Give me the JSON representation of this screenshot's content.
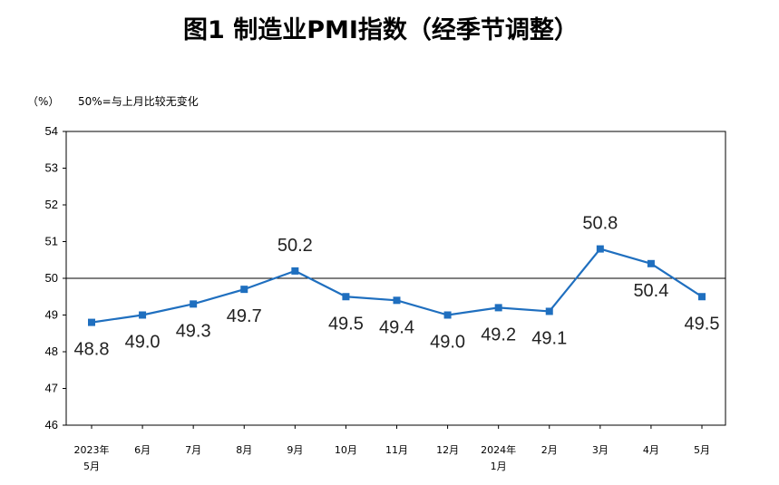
{
  "chart_data": {
    "type": "line",
    "title": "图1  制造业PMI指数（经季节调整）",
    "ylabel": "（%）",
    "annotation": "50%=与上月比较无变化",
    "ylim": [
      46,
      54
    ],
    "yticks": [
      "46",
      "47",
      "48",
      "49",
      "50",
      "51",
      "52",
      "53",
      "54"
    ],
    "reference_line": 50,
    "categories": [
      [
        "2023年",
        "5月"
      ],
      [
        "6月"
      ],
      [
        "7月"
      ],
      [
        "8月"
      ],
      [
        "9月"
      ],
      [
        "10月"
      ],
      [
        "11月"
      ],
      [
        "12月"
      ],
      [
        "2024年",
        "1月"
      ],
      [
        "2月"
      ],
      [
        "3月"
      ],
      [
        "4月"
      ],
      [
        "5月"
      ]
    ],
    "series": [
      {
        "values": [
          48.8,
          49.0,
          49.3,
          49.7,
          50.2,
          49.5,
          49.4,
          49.0,
          49.2,
          49.1,
          50.8,
          50.4,
          49.5
        ],
        "labels": [
          "48.8",
          "49.0",
          "49.3",
          "49.7",
          "50.2",
          "49.5",
          "49.4",
          "49.0",
          "49.2",
          "49.1",
          "50.8",
          "50.4",
          "49.5"
        ],
        "color": "#1f6fbf"
      }
    ],
    "grid": false,
    "legend": "none"
  }
}
